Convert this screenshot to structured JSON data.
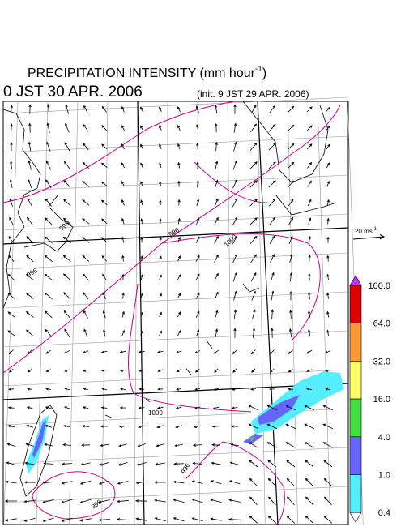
{
  "header": {
    "title": "PRECIPITATION INTENSITY (mm hour",
    "title_sup": "-1",
    "title_end": ")",
    "valid_time": "0 JST 30 APR. 2006",
    "init_time": "(init. 9 JST 29 APR. 2006)"
  },
  "wind_scale": {
    "label": "20 ms",
    "label_sup": "-1"
  },
  "colorbar": {
    "labels": [
      "100.0",
      "64.0",
      "32.0",
      "16.0",
      "4.0",
      "1.0",
      "0.4"
    ],
    "colors": [
      "#dd0000",
      "#ff9933",
      "#ffff66",
      "#44dd44",
      "#6666ff",
      "#55eeff"
    ],
    "over_color": "#bb33ff",
    "under_color": "#ffffff"
  },
  "contour_labels": [
    "996",
    "996",
    "996",
    "1000",
    "1000",
    "996",
    "996"
  ]
}
